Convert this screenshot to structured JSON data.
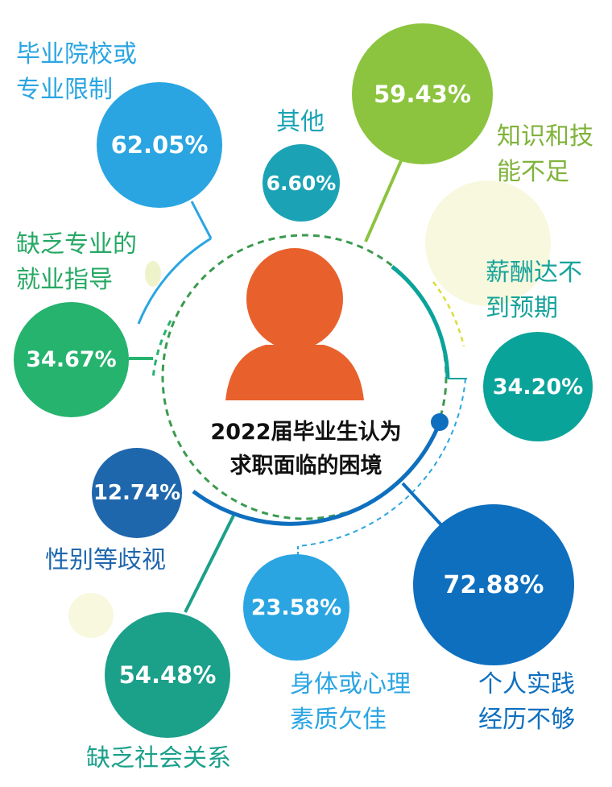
{
  "title": [
    "2022届毕业生认为",
    "求职面临的困境"
  ],
  "items": [
    {
      "label": [
        "毕业院校或",
        "专业限制"
      ],
      "value": "62.05%",
      "color": "#2aa5e2",
      "label_color": "#2aa5e2"
    },
    {
      "label": [
        "其他"
      ],
      "value": "6.60%",
      "color": "#1ba3b5",
      "label_color": "#1ba3b5"
    },
    {
      "label": [
        "知识和技",
        "能不足"
      ],
      "value": "59.43%",
      "color": "#8cc43f",
      "label_color": "#7fb33a"
    },
    {
      "label": [
        "薪酬达不",
        "到预期"
      ],
      "value": "34.20%",
      "color": "#0aa39a",
      "label_color": "#16a39a"
    },
    {
      "label": [
        "缺乏专业的",
        "就业指导"
      ],
      "value": "34.67%",
      "color": "#25b36e",
      "label_color": "#26a864"
    },
    {
      "label": [
        "性别等歧视"
      ],
      "value": "12.74%",
      "color": "#1f67ad",
      "label_color": "#1f67ad"
    },
    {
      "label": [
        "身体或心理",
        "素质欠佳"
      ],
      "value": "23.58%",
      "color": "#2aa5e2",
      "label_color": "#2aa5e2"
    },
    {
      "label": [
        "个人实践",
        "经历不够"
      ],
      "value": "72.88%",
      "color": "#0e6fbf",
      "label_color": "#0e6fbf"
    },
    {
      "label": [
        "缺乏社会关系"
      ],
      "value": "54.48%",
      "color": "#1ba08a",
      "label_color": "#1ba08a"
    }
  ],
  "colors": {
    "person": "#e8612c",
    "inner_ring": "#3a9a4e",
    "deco_pale": "#f6f7dc"
  }
}
